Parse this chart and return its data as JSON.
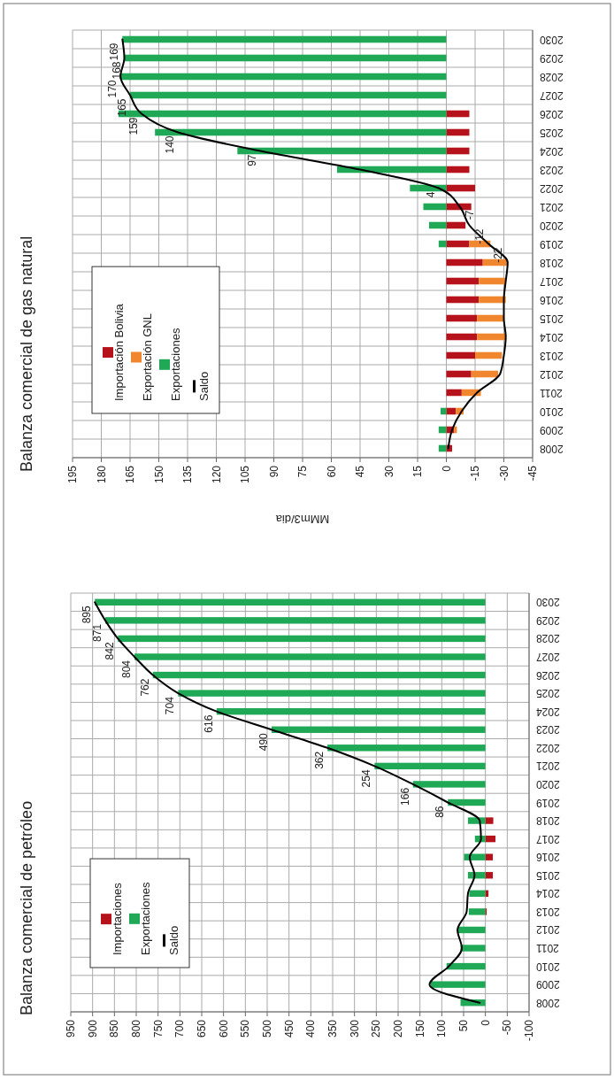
{
  "chart_data": [
    {
      "type": "bar",
      "orientation": "horizontal",
      "title": "Balanza comercial de petróleo",
      "categories": [
        "2030",
        "2029",
        "2028",
        "2027",
        "2026",
        "2025",
        "2024",
        "2023",
        "2022",
        "2021",
        "2020",
        "2019",
        "2018",
        "2017",
        "2016",
        "2015",
        "2014",
        "2013",
        "2012",
        "2011",
        "2010",
        "2009",
        "2008"
      ],
      "stacked": true,
      "xlim": [
        950,
        -100
      ],
      "xticks": [
        950,
        900,
        850,
        800,
        750,
        700,
        650,
        600,
        550,
        500,
        450,
        400,
        350,
        300,
        250,
        200,
        150,
        100,
        50,
        0,
        -50,
        -100
      ],
      "grid": true,
      "legend": "bottom left",
      "series": [
        {
          "name": "Importaciones",
          "color": "#b5121b",
          "values": [
            null,
            null,
            null,
            null,
            null,
            null,
            null,
            null,
            null,
            null,
            null,
            null,
            -18,
            -23,
            -17,
            -17,
            -7,
            -3,
            null,
            null,
            null,
            null,
            null
          ]
        },
        {
          "name": "Exportaciones",
          "color": "#1fa855",
          "values": [
            895,
            871,
            842,
            804,
            762,
            704,
            616,
            490,
            362,
            254,
            166,
            86,
            40,
            24,
            49,
            40,
            37,
            38,
            64,
            57,
            89,
            125,
            57
          ]
        },
        {
          "name": "Saldo",
          "type": "line",
          "color": "#000000",
          "values": [
            895,
            871,
            842,
            804,
            762,
            704,
            616,
            490,
            362,
            254,
            166,
            86,
            13,
            10,
            36,
            25,
            40,
            43,
            64,
            54,
            84,
            128,
            13
          ],
          "value_labels": [
            "895",
            "871",
            "842",
            "804",
            "762",
            "704",
            "616",
            "490",
            "362",
            "254",
            "166",
            "86",
            null,
            null,
            null,
            null,
            null,
            null,
            null,
            null,
            null,
            null,
            null
          ]
        }
      ]
    },
    {
      "type": "bar",
      "orientation": "horizontal",
      "title": "Balanza comercial de gas natural",
      "xlabel": "MMm3/dia",
      "categories": [
        "2030",
        "2029",
        "2028",
        "2027",
        "2026",
        "2025",
        "2024",
        "2023",
        "2022",
        "2021",
        "2020",
        "2019",
        "2018",
        "2017",
        "2016",
        "2015",
        "2014",
        "2013",
        "2012",
        "2011",
        "2010",
        "2009",
        "2008"
      ],
      "stacked": true,
      "xlim": [
        195,
        -45
      ],
      "xticks": [
        195,
        180,
        165,
        150,
        135,
        120,
        105,
        90,
        75,
        60,
        45,
        30,
        15,
        0,
        -15,
        -30,
        -45
      ],
      "grid": true,
      "legend": "bottom left",
      "series": [
        {
          "name": "Importación Bolivia",
          "color": "#b5121b",
          "values": [
            null,
            null,
            null,
            null,
            -12,
            -12,
            -12,
            -12,
            -15,
            -13,
            -10,
            -12,
            -19,
            -17,
            -17,
            -16,
            -16,
            -15,
            -13,
            -8,
            -5,
            -4,
            -3
          ]
        },
        {
          "name": "Exportación GNL",
          "color": "#f0862d",
          "values": [
            null,
            null,
            null,
            null,
            null,
            null,
            null,
            null,
            null,
            null,
            null,
            -11,
            -13,
            -14,
            -14,
            -14,
            -15,
            -14,
            -14,
            -10,
            -4,
            -1.5,
            null
          ]
        },
        {
          "name": "Exportaciones",
          "color": "#1fa855",
          "values": [
            169,
            168,
            170,
            165,
            171,
            152,
            109,
            57,
            19,
            12,
            9,
            4,
            null,
            null,
            null,
            null,
            null,
            null,
            null,
            null,
            3,
            4,
            4
          ]
        },
        {
          "name": "Saldo",
          "type": "line",
          "color": "#000000",
          "values": [
            169,
            168,
            170,
            165,
            159,
            140,
            97,
            45,
            4,
            -7,
            -12,
            -22,
            -32,
            -31,
            -30,
            -30,
            -31,
            -30,
            -28,
            -16,
            -8,
            -3,
            -1
          ],
          "value_labels": [
            "169",
            "168",
            "170",
            "165",
            "159",
            "140",
            "97",
            null,
            "4",
            "-7",
            "-12",
            "-22",
            null,
            null,
            null,
            null,
            null,
            null,
            null,
            null,
            null,
            null,
            null
          ]
        }
      ]
    }
  ]
}
